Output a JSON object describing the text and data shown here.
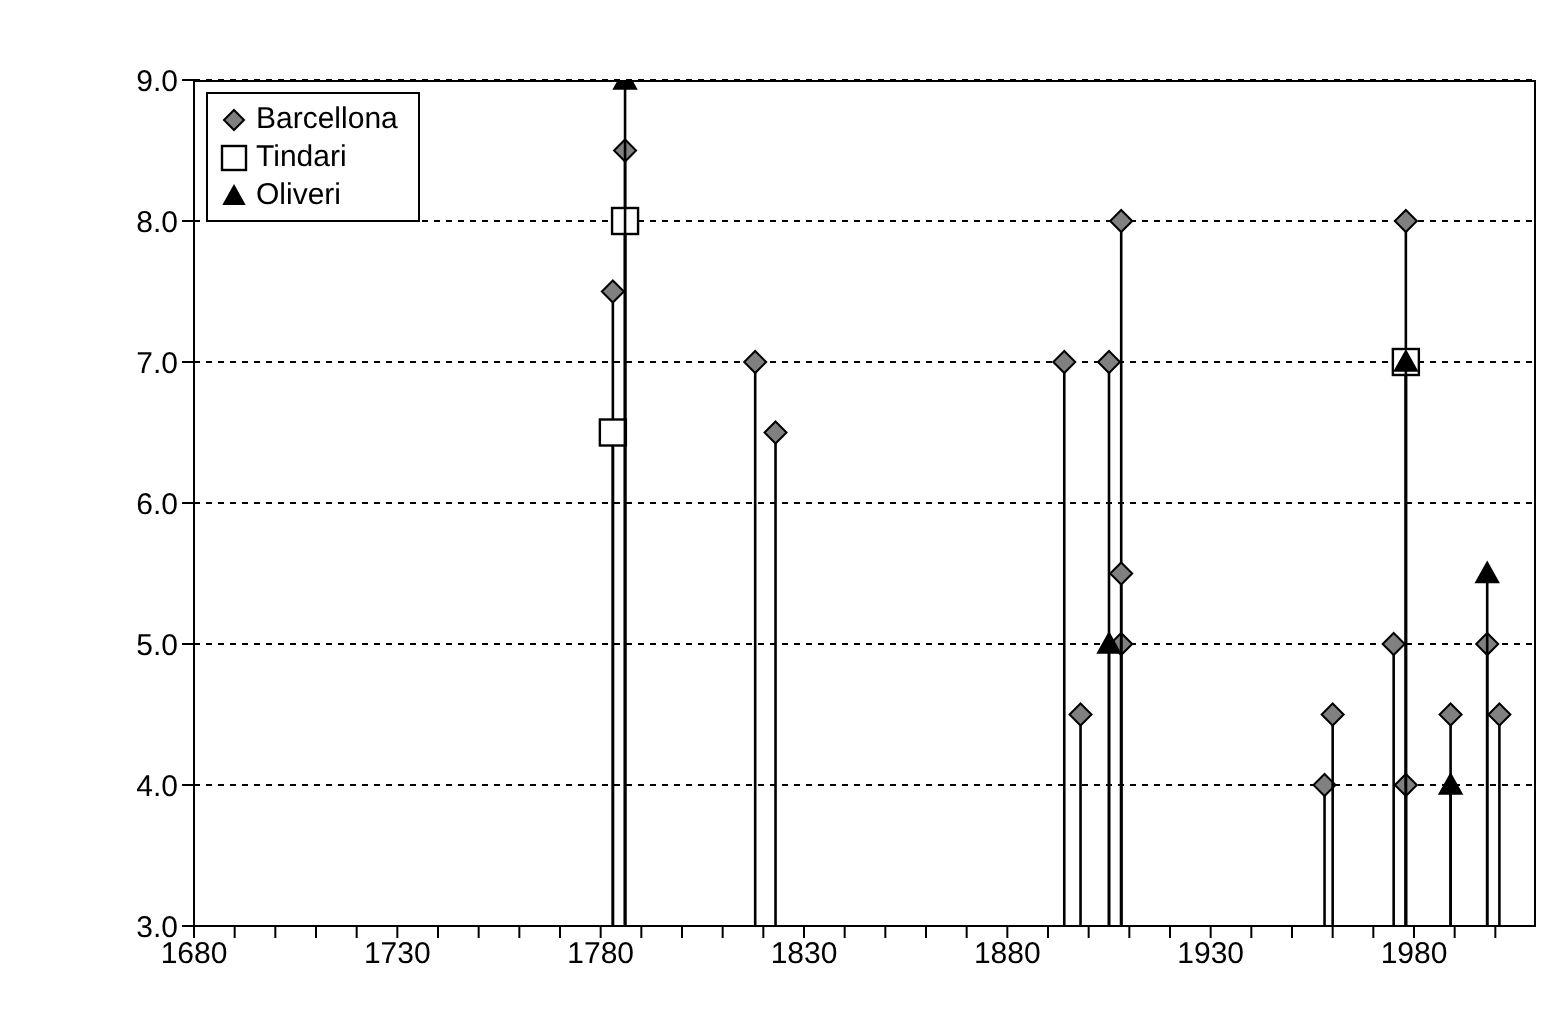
{
  "chart_data": {
    "type": "lollipop",
    "xlim": [
      1680,
      2010
    ],
    "xticks": [
      1680,
      {
        "value": 1690,
        "label": null
      },
      {
        "value": 1700,
        "label": null
      },
      {
        "value": 1710,
        "label": null
      },
      {
        "value": 1720,
        "label": null
      },
      1730,
      {
        "value": 1740,
        "label": null
      },
      {
        "value": 1750,
        "label": null
      },
      {
        "value": 1760,
        "label": null
      },
      {
        "value": 1770,
        "label": null
      },
      1780,
      {
        "value": 1790,
        "label": null
      },
      {
        "value": 1800,
        "label": null
      },
      {
        "value": 1810,
        "label": null
      },
      {
        "value": 1820,
        "label": null
      },
      1830,
      {
        "value": 1840,
        "label": null
      },
      {
        "value": 1850,
        "label": null
      },
      {
        "value": 1860,
        "label": null
      },
      {
        "value": 1870,
        "label": null
      },
      1880,
      {
        "value": 1890,
        "label": null
      },
      {
        "value": 1900,
        "label": null
      },
      {
        "value": 1910,
        "label": null
      },
      {
        "value": 1920,
        "label": null
      },
      1930,
      {
        "value": 1940,
        "label": null
      },
      {
        "value": 1950,
        "label": null
      },
      {
        "value": 1960,
        "label": null
      },
      {
        "value": 1970,
        "label": null
      },
      1980,
      {
        "value": 1990,
        "label": null
      },
      {
        "value": 2000,
        "label": null
      }
    ],
    "ylim": [
      3,
      9
    ],
    "yticks": [
      {
        "value": 3,
        "label": "3.0"
      },
      {
        "value": 4,
        "label": "4.0"
      },
      {
        "value": 5,
        "label": "5.0"
      },
      {
        "value": 6,
        "label": "6.0"
      },
      {
        "value": 7,
        "label": "7.0"
      },
      {
        "value": 8,
        "label": "8.0"
      },
      {
        "value": 9,
        "label": "9.0"
      }
    ],
    "grid": "y",
    "legend": "top left",
    "line_style": "dotted",
    "series": [
      {
        "name": "Barcellona",
        "color": "#808080",
        "marker": "diamond",
        "x": [
          1783,
          1786,
          1818,
          1823,
          1894,
          1898,
          1905,
          1908,
          1908,
          1908,
          1958,
          1960,
          1975,
          1978,
          1978,
          1989,
          1998,
          2001
        ],
        "values": [
          7.5,
          8.5,
          7.0,
          6.5,
          7.0,
          4.5,
          7.0,
          5.0,
          8.0,
          5.5,
          4.0,
          4.5,
          5.0,
          8.0,
          4.0,
          4.5,
          5.0,
          4.5
        ]
      },
      {
        "name": "Tindari",
        "color": "#ffffff",
        "marker": "square",
        "x": [
          1783,
          1786,
          1978
        ],
        "values": [
          6.5,
          8.0,
          7.0
        ]
      },
      {
        "name": "Oliveri",
        "color": "#000000",
        "marker": "triangle",
        "x": [
          1786,
          1905,
          1978,
          1989,
          1998
        ],
        "values": [
          9.0,
          5.0,
          7.0,
          4.0,
          5.5
        ]
      }
    ]
  }
}
